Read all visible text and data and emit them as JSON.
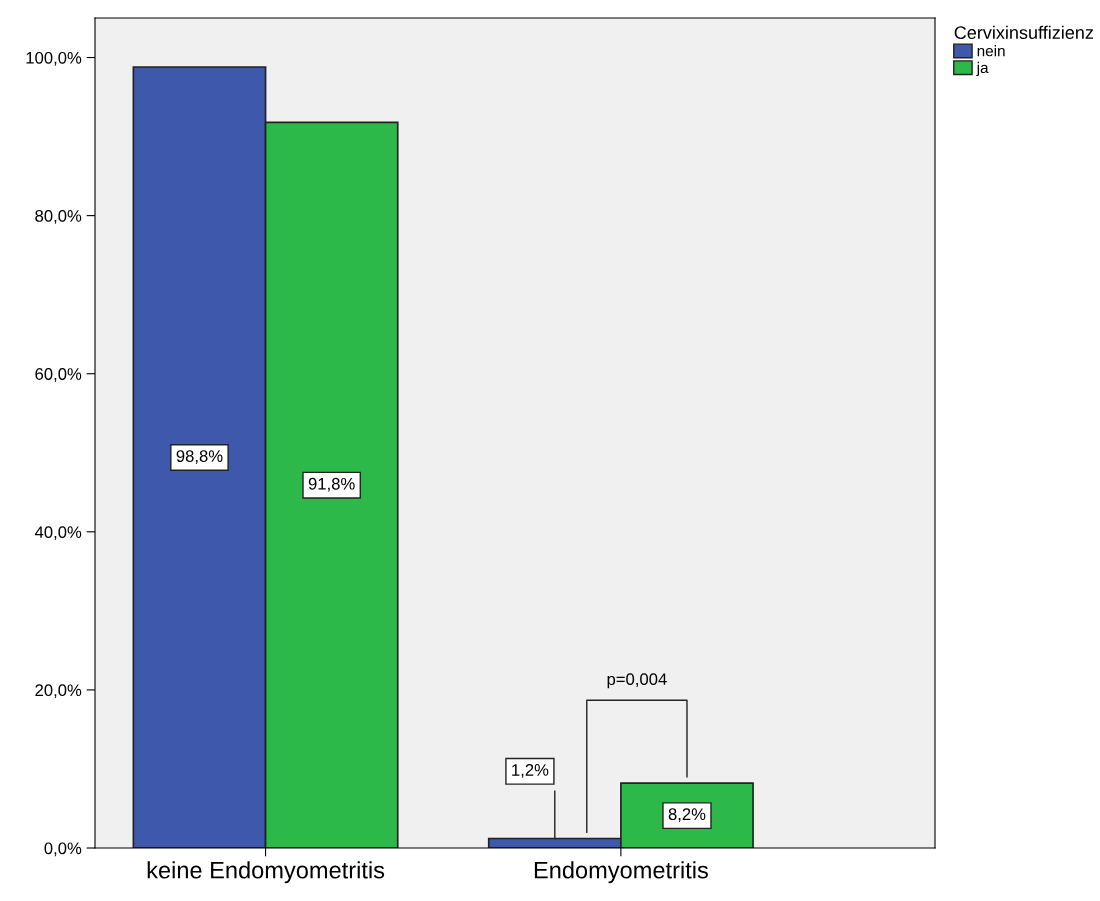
{
  "chart_data": {
    "type": "bar",
    "categories": [
      "keine Endomyometritis",
      "Endomyometritis"
    ],
    "legend_title": "Cervixinsuffizienz",
    "series": [
      {
        "name": "nein",
        "color": "#3e58ac",
        "values": [
          98.8,
          1.2
        ],
        "value_labels": [
          "98,8%",
          "1,2%"
        ]
      },
      {
        "name": "ja",
        "color": "#2db84a",
        "values": [
          91.8,
          8.2
        ],
        "value_labels": [
          "91,8%",
          "8,2%"
        ]
      }
    ],
    "ylim": [
      0,
      105
    ],
    "yticks": [
      {
        "value": 0,
        "label": "0,0%"
      },
      {
        "value": 20,
        "label": "20,0%"
      },
      {
        "value": 40,
        "label": "40,0%"
      },
      {
        "value": 60,
        "label": "60,0%"
      },
      {
        "value": 80,
        "label": "80,0%"
      },
      {
        "value": 100,
        "label": "100,0%"
      }
    ],
    "annotations": [
      "p=0,004"
    ],
    "legend": "top right",
    "grid": false
  }
}
